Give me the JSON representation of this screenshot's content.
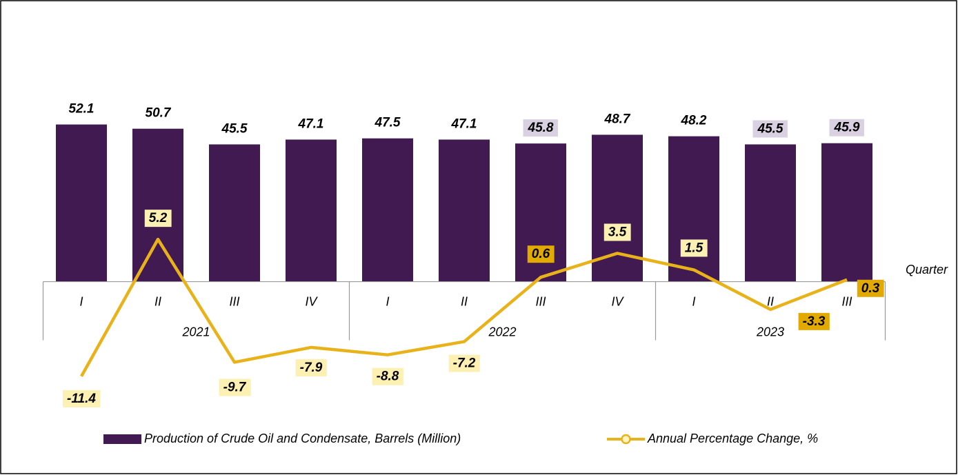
{
  "chart_data": {
    "type": "bar-line",
    "categories": [
      "I",
      "II",
      "III",
      "IV",
      "I",
      "II",
      "III",
      "IV",
      "I",
      "II",
      "III"
    ],
    "groups": [
      {
        "label": "2021",
        "span": 4
      },
      {
        "label": "2022",
        "span": 4
      },
      {
        "label": "2023",
        "span": 3
      }
    ],
    "x_label": "Quarter",
    "ylim": [
      -33,
      60
    ],
    "y2lim": [
      -12,
      22
    ],
    "series": [
      {
        "name": "Production of Crude Oil and Condensate, Barrels (Million)",
        "type": "bar",
        "color": "#421a52",
        "values": [
          52.1,
          50.7,
          45.5,
          47.1,
          47.5,
          47.1,
          45.8,
          48.7,
          48.2,
          45.5,
          45.9
        ],
        "label_colors": [
          null,
          null,
          null,
          null,
          null,
          null,
          "#d9d0e1",
          null,
          null,
          "#d9d0e1",
          "#d9d0e1"
        ]
      },
      {
        "name": "Annual Percentage Change, %",
        "type": "line",
        "axis": "y2",
        "color": "#e8b31a",
        "values": [
          -11.4,
          5.2,
          -9.7,
          -7.9,
          -8.8,
          -7.2,
          0.6,
          3.5,
          1.5,
          -3.3,
          0.3
        ],
        "label_colors": [
          "#fdf0b3",
          "#fdf0b3",
          "#fdf0b3",
          "#fdf0b3",
          "#fdf0b3",
          "#fdf0b3",
          "#e2a900",
          "#fdf0b3",
          "#fdf0b3",
          "#e2a900",
          "#e2a900"
        ]
      }
    ]
  }
}
